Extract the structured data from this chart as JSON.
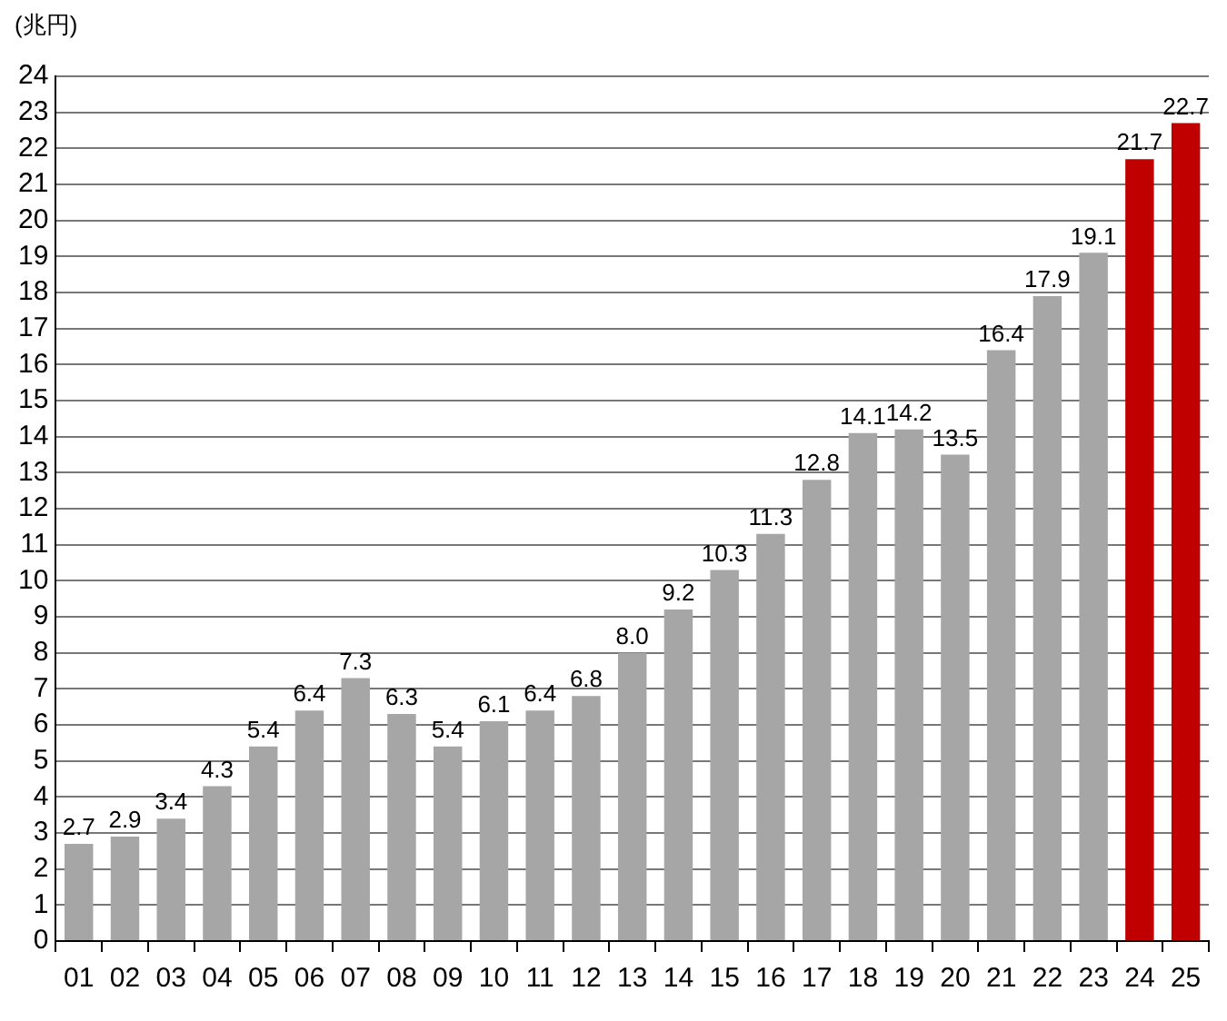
{
  "chart_data": {
    "type": "bar",
    "ylabel": "(兆円)",
    "categories": [
      "01",
      "02",
      "03",
      "04",
      "05",
      "06",
      "07",
      "08",
      "09",
      "10",
      "11",
      "12",
      "13",
      "14",
      "15",
      "16",
      "17",
      "18",
      "19",
      "20",
      "21",
      "22",
      "23",
      "24",
      "25"
    ],
    "values": [
      2.7,
      2.9,
      3.4,
      4.3,
      5.4,
      6.4,
      7.3,
      6.3,
      5.4,
      6.1,
      6.4,
      6.8,
      8.0,
      9.2,
      10.3,
      11.3,
      12.8,
      14.1,
      14.2,
      13.5,
      16.4,
      17.9,
      19.1,
      21.7,
      22.7
    ],
    "colors": [
      "#a6a6a6",
      "#a6a6a6",
      "#a6a6a6",
      "#a6a6a6",
      "#a6a6a6",
      "#a6a6a6",
      "#a6a6a6",
      "#a6a6a6",
      "#a6a6a6",
      "#a6a6a6",
      "#a6a6a6",
      "#a6a6a6",
      "#a6a6a6",
      "#a6a6a6",
      "#a6a6a6",
      "#a6a6a6",
      "#a6a6a6",
      "#a6a6a6",
      "#a6a6a6",
      "#a6a6a6",
      "#a6a6a6",
      "#a6a6a6",
      "#a6a6a6",
      "#c00000",
      "#c00000"
    ],
    "value_labels": [
      "2.7",
      "2.9",
      "3.4",
      "4.3",
      "5.4",
      "6.4",
      "7.3",
      "6.3",
      "5.4",
      "6.1",
      "6.4",
      "6.8",
      "8.0",
      "9.2",
      "10.3",
      "11.3",
      "12.8",
      "14.1",
      "14.2",
      "13.5",
      "16.4",
      "17.9",
      "19.1",
      "21.7",
      "22.7"
    ],
    "ylim": [
      0,
      24
    ],
    "yticks": [
      0,
      1,
      2,
      3,
      4,
      5,
      6,
      7,
      8,
      9,
      10,
      11,
      12,
      13,
      14,
      15,
      16,
      17,
      18,
      19,
      20,
      21,
      22,
      23,
      24
    ],
    "grid": "y",
    "legend": false
  }
}
